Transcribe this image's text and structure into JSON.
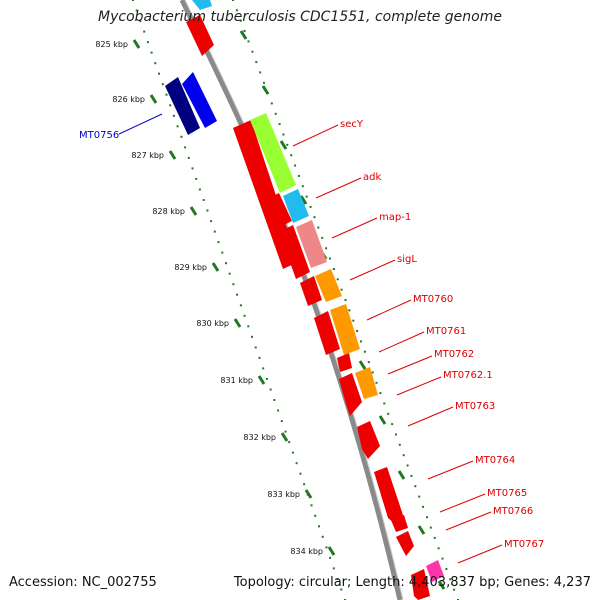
{
  "title": "Mycobacterium tuberculosis CDC1551, complete genome",
  "footer": {
    "accession": "Accession: NC_002755",
    "summary": "Topology: circular; Length: 4,403,837 bp; Genes: 4,237"
  },
  "colors": {
    "backbone": "#8a8a8a",
    "gene_red": "#ee0000",
    "gene_dark_blue": "#000080",
    "gene_blue": "#0000ee",
    "gene_green": "#99ff33",
    "gene_cyan": "#22bbee",
    "gene_pink": "#ee8888",
    "gene_orange": "#ff9900",
    "gene_magenta": "#ff33aa",
    "tick_green": "#227722",
    "label_red": "#dd0000",
    "label_blue": "#0000cc"
  },
  "scale": {
    "ticks": [
      {
        "label": "825 kbp",
        "kbp": 825
      },
      {
        "label": "826 kbp",
        "kbp": 826
      },
      {
        "label": "827 kbp",
        "kbp": 827
      },
      {
        "label": "828 kbp",
        "kbp": 828
      },
      {
        "label": "829 kbp",
        "kbp": 829
      },
      {
        "label": "830 kbp",
        "kbp": 830
      },
      {
        "label": "831 kbp",
        "kbp": 831
      },
      {
        "label": "832 kbp",
        "kbp": 832
      },
      {
        "label": "833 kbp",
        "kbp": 833
      },
      {
        "label": "834 kbp",
        "kbp": 834
      }
    ]
  },
  "gene_labels": [
    {
      "name": "MT0756",
      "color": "blue"
    },
    {
      "name": "secY",
      "color": "red"
    },
    {
      "name": "adk",
      "color": "red"
    },
    {
      "name": "map-1",
      "color": "red"
    },
    {
      "name": "sigL",
      "color": "red"
    },
    {
      "name": "MT0760",
      "color": "red"
    },
    {
      "name": "MT0761",
      "color": "red"
    },
    {
      "name": "MT0762",
      "color": "red"
    },
    {
      "name": "MT0762.1",
      "color": "red"
    },
    {
      "name": "MT0763",
      "color": "red"
    },
    {
      "name": "MT0764",
      "color": "red"
    },
    {
      "name": "MT0765",
      "color": "red"
    },
    {
      "name": "MT0766",
      "color": "red"
    },
    {
      "name": "MT0767",
      "color": "red"
    }
  ]
}
